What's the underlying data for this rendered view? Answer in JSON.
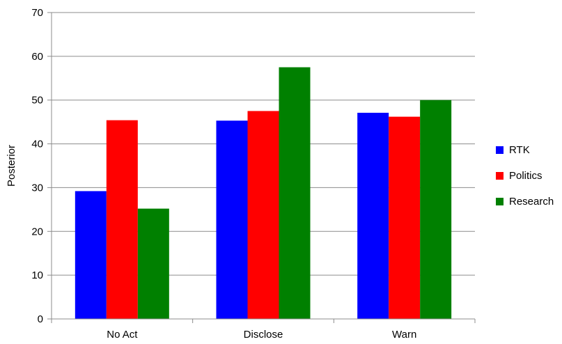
{
  "chart_data": {
    "type": "bar",
    "title": "",
    "xlabel": "",
    "ylabel": "Posterior",
    "ylim": [
      0,
      70
    ],
    "yticks": [
      0,
      10,
      20,
      30,
      40,
      50,
      60,
      70
    ],
    "grid": true,
    "legend_position": "right",
    "categories": [
      "No Act",
      "Disclose",
      "Warn"
    ],
    "series": [
      {
        "name": "RTK",
        "color": "#0000ff",
        "values": [
          29.2,
          45.3,
          47.1
        ]
      },
      {
        "name": "Politics",
        "color": "#ff0000",
        "values": [
          45.4,
          47.5,
          46.2
        ]
      },
      {
        "name": "Research",
        "color": "#008000",
        "values": [
          25.2,
          57.5,
          50.0
        ]
      }
    ]
  }
}
